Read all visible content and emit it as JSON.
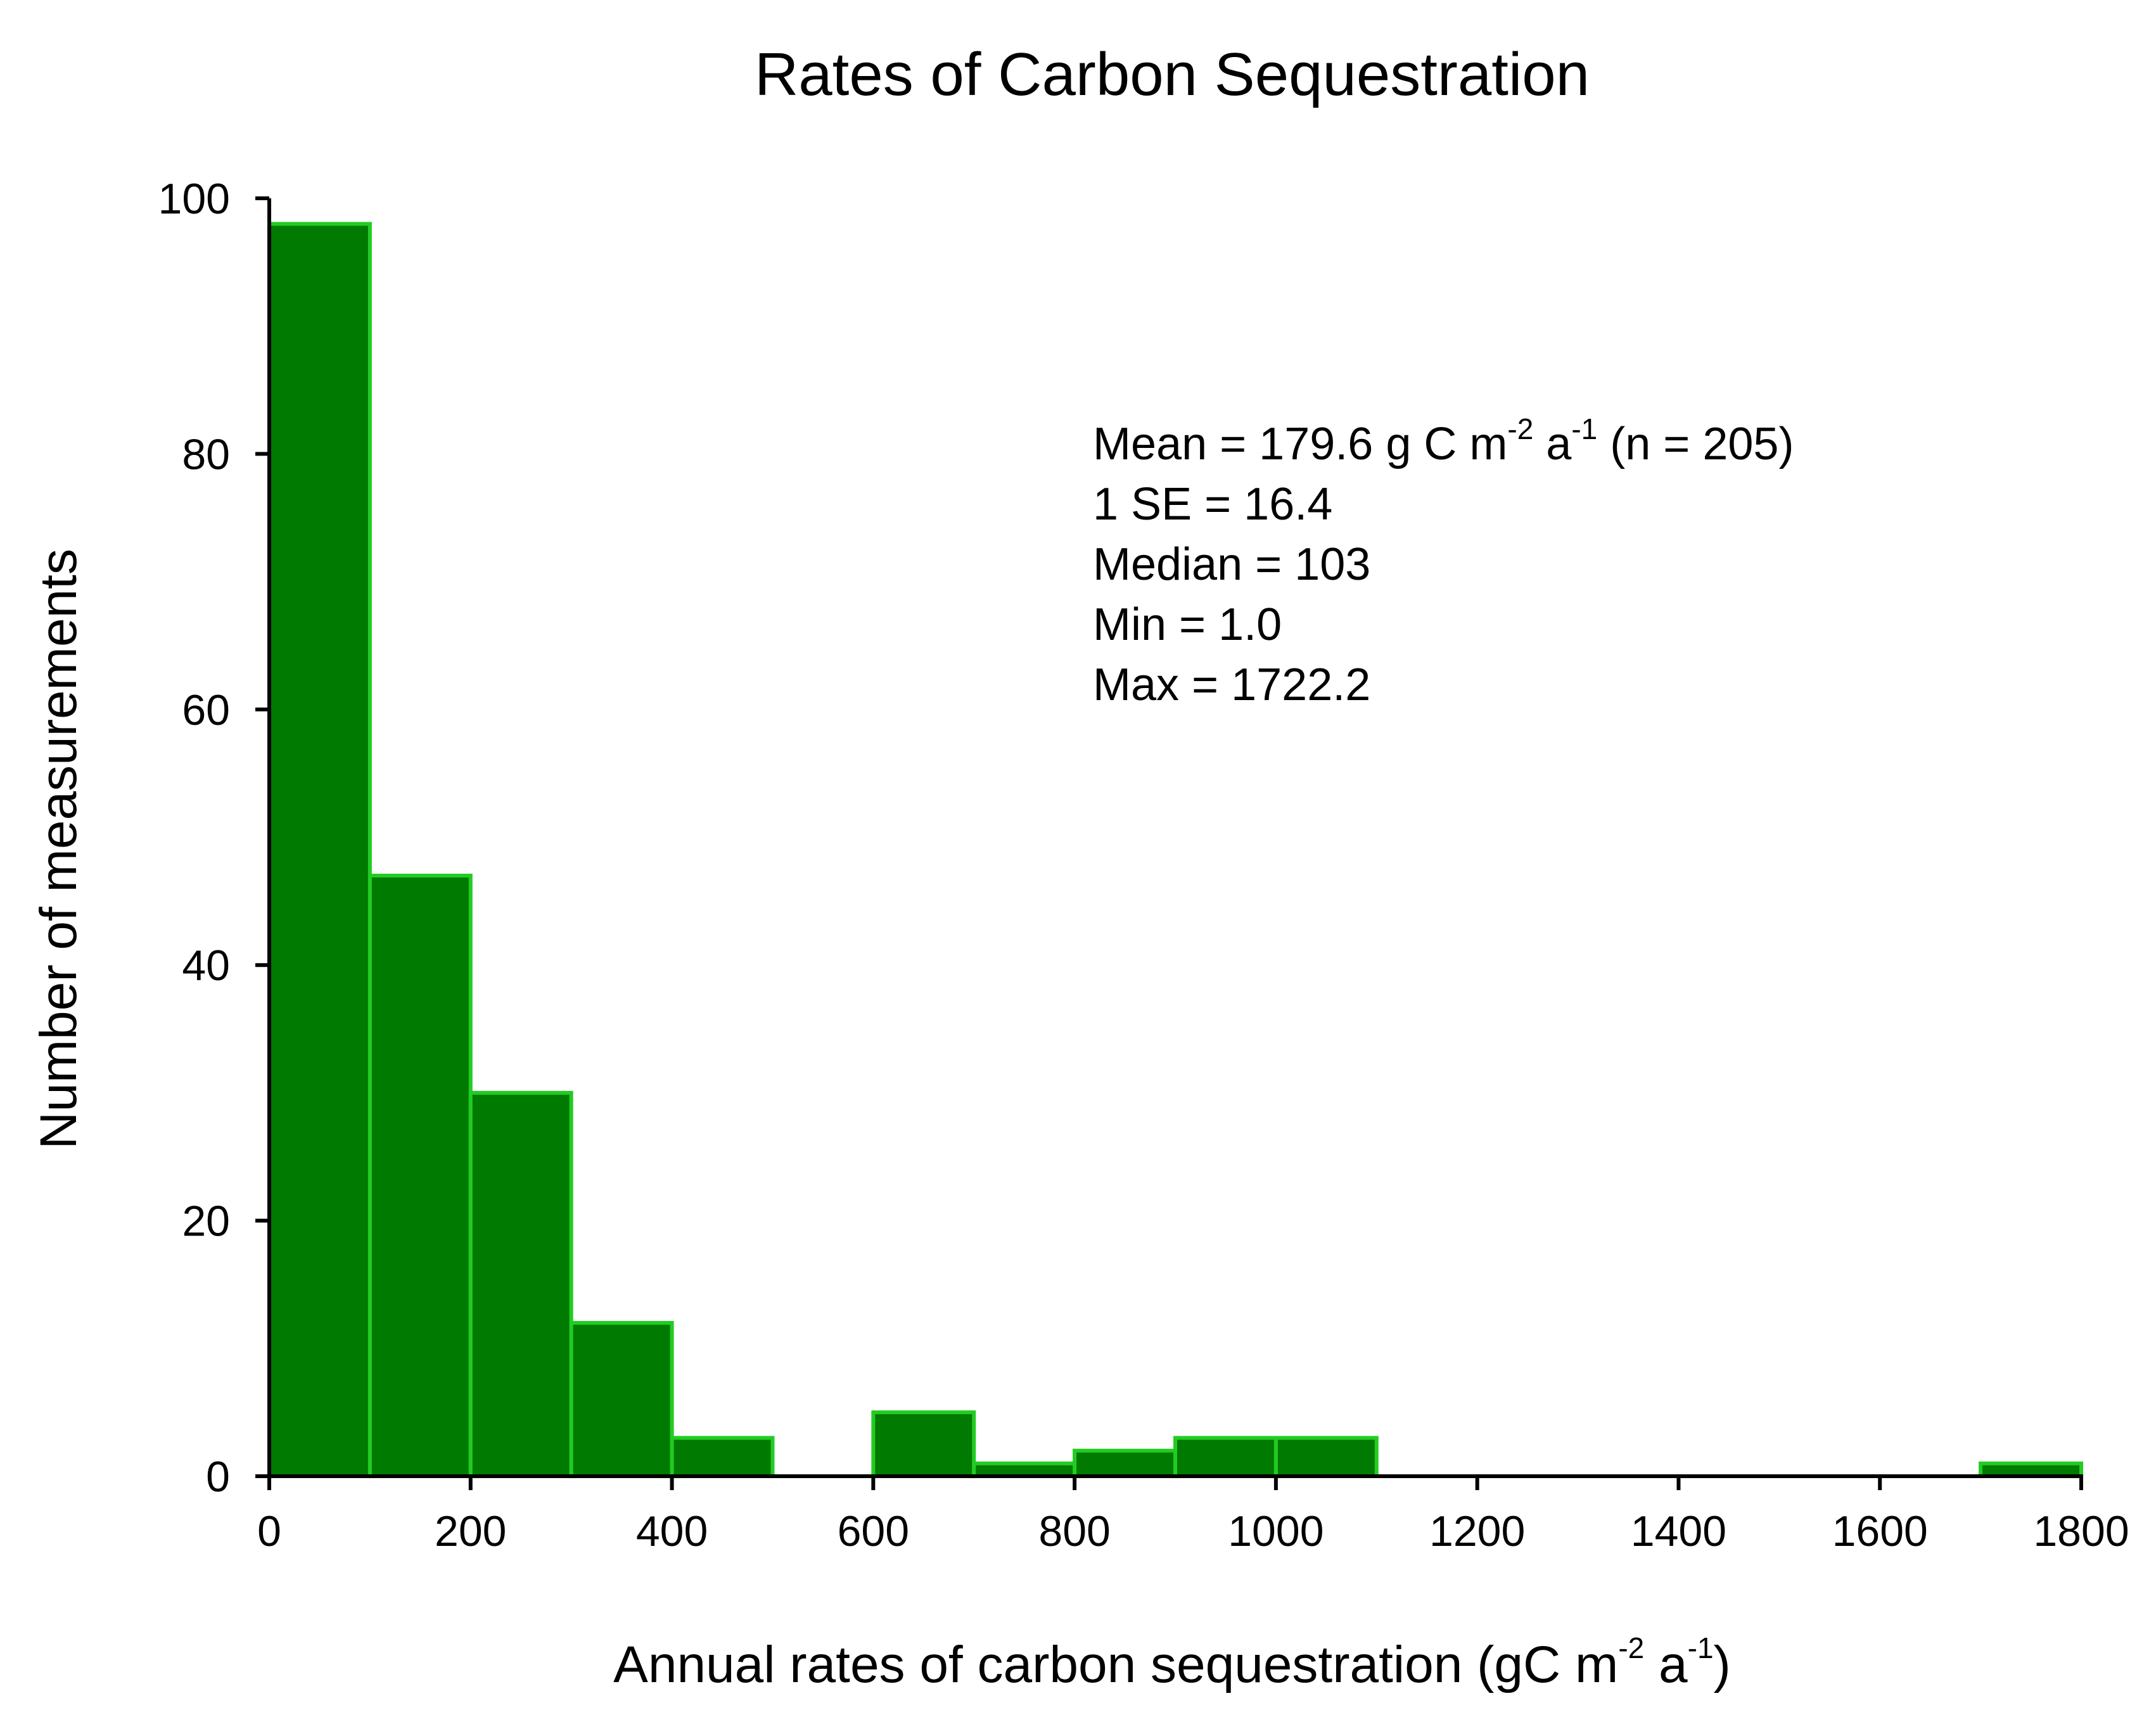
{
  "chart_data": {
    "type": "bar",
    "title": "Rates of Carbon Sequestration",
    "xlabel": {
      "main": "Annual rates of carbon sequestration (gC m",
      "sup1": "-2",
      "mid": " a",
      "sup2": "-1",
      "end": ")"
    },
    "ylabel": "Number of measurements",
    "xlim": [
      0,
      1800
    ],
    "ylim": [
      0,
      100
    ],
    "x_ticks": [
      0,
      200,
      400,
      600,
      800,
      1000,
      1200,
      1400,
      1600,
      1800
    ],
    "y_ticks": [
      0,
      20,
      40,
      60,
      80,
      100
    ],
    "grid": false,
    "bins": [
      {
        "start": 0,
        "end": 100,
        "count": 98
      },
      {
        "start": 100,
        "end": 200,
        "count": 47
      },
      {
        "start": 200,
        "end": 300,
        "count": 30
      },
      {
        "start": 300,
        "end": 400,
        "count": 12
      },
      {
        "start": 400,
        "end": 500,
        "count": 3
      },
      {
        "start": 500,
        "end": 600,
        "count": 0
      },
      {
        "start": 600,
        "end": 700,
        "count": 5
      },
      {
        "start": 700,
        "end": 800,
        "count": 1
      },
      {
        "start": 800,
        "end": 900,
        "count": 2
      },
      {
        "start": 900,
        "end": 1000,
        "count": 3
      },
      {
        "start": 1000,
        "end": 1100,
        "count": 3
      },
      {
        "start": 1700,
        "end": 1800,
        "count": 1
      }
    ],
    "bar_fill": "#007a00",
    "bar_edge": "#22cc22",
    "annotation": {
      "mean_line": {
        "pre": "Mean = 179.6 g C m",
        "sup1": "-2",
        "mid": " a",
        "sup2": "-1",
        "post": " (n = 205)"
      },
      "lines": [
        "1 SE = 16.4",
        "Median = 103",
        "Min = 1.0",
        "Max = 1722.2"
      ]
    }
  }
}
